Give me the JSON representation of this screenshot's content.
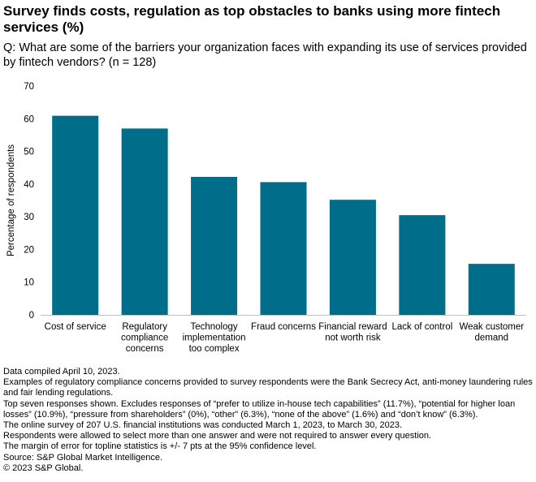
{
  "title": "Survey finds costs, regulation as top obstacles to banks using more fintech services (%)",
  "subtitle": "Q: What are some of the barriers your organization faces with expanding its use of services provided by fintech vendors? (n = 128)",
  "chart_data": {
    "type": "bar",
    "categories": [
      [
        "Cost of service"
      ],
      [
        "Regulatory",
        "compliance",
        "concerns"
      ],
      [
        "Technology",
        "implementation",
        "too complex"
      ],
      [
        "Fraud concerns"
      ],
      [
        "Financial reward",
        "not worth risk"
      ],
      [
        "Lack of control"
      ],
      [
        "Weak customer",
        "demand"
      ]
    ],
    "values": [
      60.9,
      57.0,
      42.2,
      40.6,
      35.2,
      30.5,
      15.6
    ],
    "ylabel": "Percentage of respondents",
    "ylim": [
      0,
      70
    ],
    "yticks": [
      0,
      10,
      20,
      30,
      40,
      50,
      60,
      70
    ],
    "grid": false,
    "bar_color": "#006d8a"
  },
  "notes": [
    "Data compiled April 10, 2023.",
    "Examples of regulatory compliance concerns provided to survey respondents were the Bank Secrecy Act, anti-money laundering rules and fair lending regulations.",
    "Top seven responses shown. Excludes responses of “prefer to utilize in-house tech capabilities” (11.7%), “potential for higher loan losses” (10.9%), “pressure from shareholders” (0%), “other” (6.3%), “none of the above” (1.6%) and “don’t know” (6.3%).",
    "The online survey of 207 U.S. financial institutions was conducted March 1, 2023, to March 30, 2023.",
    "Respondents were allowed to select more than one answer and were not required to answer every question.",
    "The margin of error for topline statistics is +/- 7 pts at the 95% confidence level.",
    "Source: S&P Global Market Intelligence.",
    "© 2023 S&P Global."
  ]
}
